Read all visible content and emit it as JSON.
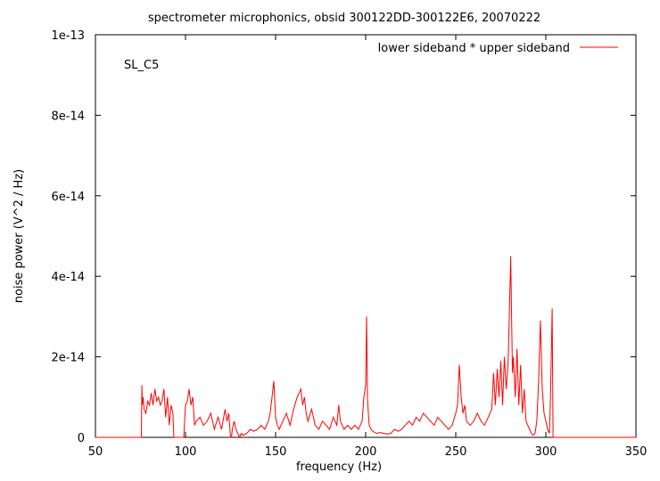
{
  "chart_data": {
    "type": "line",
    "title": "spectrometer microphonics, obsid 300122DD-300122E6, 20070222",
    "xlabel": "frequency (Hz)",
    "ylabel": "noise power (V^2 / Hz)",
    "annotation": "SL_C5",
    "xlim": [
      50,
      350
    ],
    "ylim": [
      0,
      1e-13
    ],
    "xticks": [
      50,
      100,
      150,
      200,
      250,
      300,
      350
    ],
    "xtick_labels": [
      "50",
      "100",
      "150",
      "200",
      "250",
      "300",
      "350"
    ],
    "yticks": [
      0,
      2e-14,
      4e-14,
      6e-14,
      8e-14,
      1e-13
    ],
    "ytick_labels": [
      "0",
      "2e-14",
      "4e-14",
      "6e-14",
      "8e-14",
      "1e-13"
    ],
    "grid": false,
    "legend": "top-right",
    "series": [
      {
        "name": "lower sideband * upper sideband",
        "color": "#ff0000",
        "x": [
          50,
          75.5,
          75.8,
          76,
          76.5,
          77,
          78,
          79,
          80,
          81,
          82,
          83,
          84,
          85,
          86,
          87,
          88,
          89,
          90,
          91,
          92,
          93,
          93.5,
          94,
          99,
          100,
          101,
          102,
          103,
          104,
          105,
          106,
          108,
          110,
          112,
          114,
          116,
          118,
          120,
          122,
          123,
          124,
          125,
          125.5,
          126,
          127,
          128,
          129,
          130,
          131,
          132,
          134,
          136,
          138,
          140,
          142,
          144,
          146,
          147,
          148,
          149,
          150,
          151,
          152,
          154,
          156,
          158,
          160,
          162,
          164,
          165,
          166,
          167,
          168,
          170,
          172,
          174,
          176,
          178,
          180,
          182,
          184,
          185,
          186,
          188,
          190,
          192,
          194,
          196,
          198,
          199,
          200,
          200.5,
          201,
          201.5,
          202,
          203,
          204,
          206,
          208,
          210,
          212,
          214,
          216,
          218,
          220,
          222,
          224,
          226,
          228,
          230,
          232,
          234,
          236,
          238,
          240,
          242,
          244,
          246,
          248,
          250,
          251,
          252,
          253,
          254,
          255,
          256,
          258,
          260,
          262,
          264,
          266,
          268,
          270,
          271,
          272,
          273,
          274,
          275,
          276,
          277,
          278,
          279,
          280,
          280.5,
          281,
          281.5,
          282,
          283,
          284,
          285,
          286,
          287,
          288,
          289,
          290,
          291,
          292,
          293,
          294,
          295,
          296,
          297,
          298,
          299,
          300,
          301,
          302,
          302.5,
          303,
          303.5,
          304,
          350
        ],
        "y": [
          0,
          0,
          1.3e-14,
          8e-15,
          1e-14,
          7e-15,
          6e-15,
          9e-15,
          8e-15,
          1.1e-14,
          8e-15,
          1.2e-14,
          9e-15,
          1e-14,
          8e-15,
          9e-15,
          1.2e-14,
          5e-15,
          1e-14,
          3e-15,
          8e-15,
          6e-15,
          0,
          0,
          0,
          8e-15,
          9e-15,
          1.2e-14,
          8e-15,
          1e-14,
          3e-15,
          4e-15,
          5e-15,
          3e-15,
          4e-15,
          6e-15,
          2e-15,
          5e-15,
          2e-15,
          7e-15,
          4e-15,
          6e-15,
          0,
          0,
          2e-15,
          4e-15,
          2e-15,
          1e-15,
          0,
          1e-15,
          5e-16,
          1e-15,
          2e-15,
          1.5e-15,
          2e-15,
          3e-15,
          2e-15,
          4e-15,
          6e-15,
          1e-14,
          1.4e-14,
          5e-15,
          3e-15,
          2e-15,
          4e-15,
          6e-15,
          3e-15,
          7e-15,
          1e-14,
          1.2e-14,
          8e-15,
          1e-14,
          6e-15,
          4e-15,
          7e-15,
          3e-15,
          2e-15,
          4e-15,
          3e-15,
          2e-15,
          5e-15,
          3e-15,
          8e-15,
          4e-15,
          2e-15,
          3e-15,
          2e-15,
          3e-15,
          2e-15,
          4e-15,
          1e-14,
          1.3e-14,
          3e-14,
          1e-14,
          6e-15,
          3e-15,
          2e-15,
          1.5e-15,
          1e-15,
          1.2e-15,
          1e-15,
          8e-16,
          1e-15,
          2e-15,
          1.5e-15,
          2e-15,
          3e-15,
          4e-15,
          3e-15,
          5e-15,
          4e-15,
          6e-15,
          5e-15,
          4e-15,
          3e-15,
          5e-15,
          4e-15,
          3e-15,
          2e-15,
          3e-15,
          6e-15,
          8e-15,
          1.8e-14,
          1e-14,
          6e-15,
          8e-15,
          4e-15,
          3e-15,
          4e-15,
          6e-15,
          4e-15,
          3e-15,
          5e-15,
          7e-15,
          1.6e-14,
          8e-15,
          1.7e-14,
          1e-14,
          1.9e-14,
          8e-15,
          2e-14,
          1.2e-14,
          1.8e-14,
          3.5e-14,
          4.5e-14,
          3e-14,
          1.6e-14,
          2e-14,
          1e-14,
          2.2e-14,
          8e-15,
          1.8e-14,
          6e-15,
          1.2e-14,
          4e-15,
          3e-15,
          2e-15,
          1e-15,
          5e-16,
          1e-15,
          4e-15,
          1.4e-14,
          2.9e-14,
          1.2e-14,
          6e-15,
          4e-15,
          2e-15,
          1e-15,
          8e-15,
          2e-14,
          3.2e-14,
          0,
          0
        ]
      }
    ]
  }
}
